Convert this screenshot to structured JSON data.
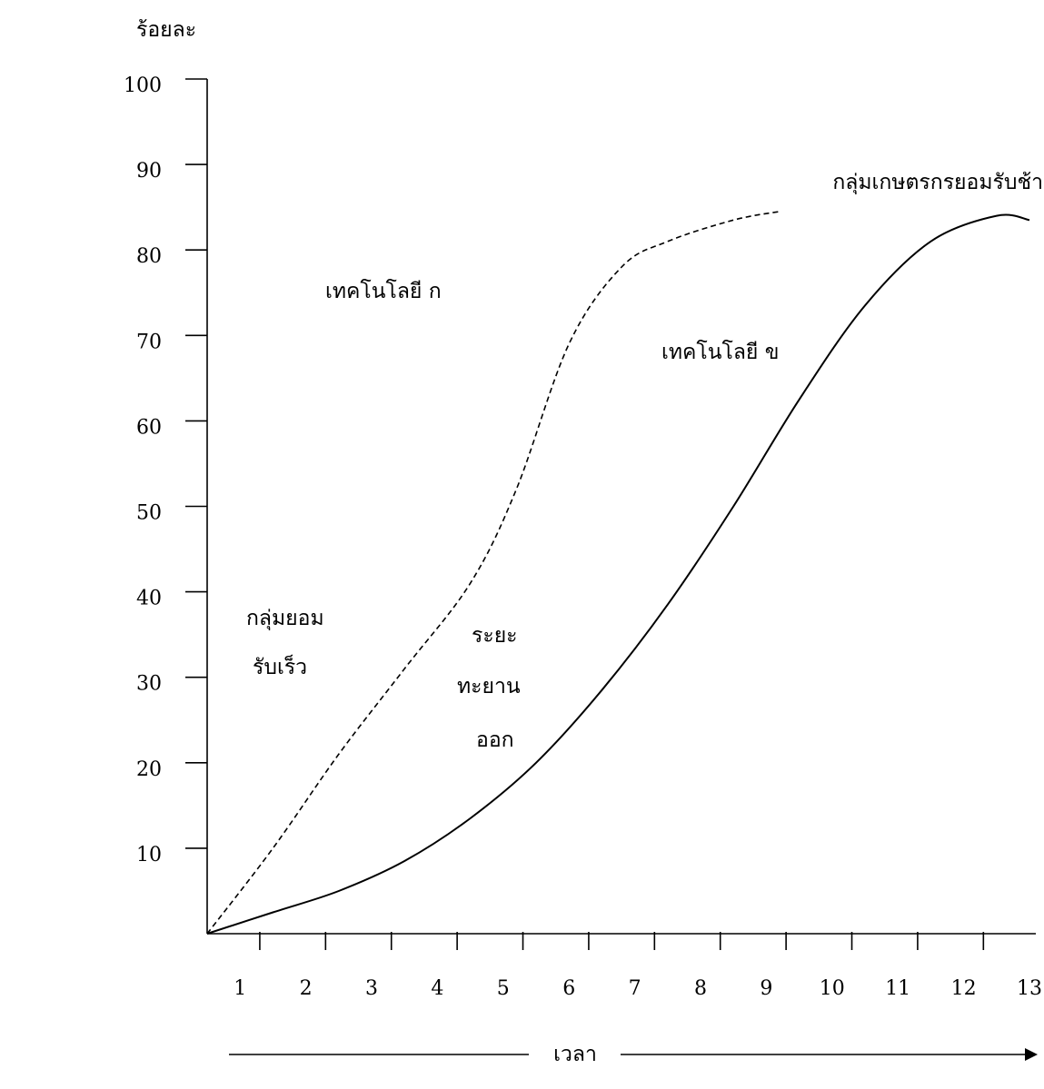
{
  "chart_data": {
    "type": "line",
    "title": "",
    "ylabel": "ร้อยละ",
    "xlabel": "เวลา",
    "ylim": [
      0,
      100
    ],
    "xlim": [
      0,
      13
    ],
    "yticks": [
      10,
      20,
      30,
      40,
      50,
      60,
      70,
      80,
      90,
      100
    ],
    "xticks": [
      1,
      2,
      3,
      4,
      5,
      6,
      7,
      8,
      9,
      10,
      11,
      12,
      13
    ],
    "grid": false,
    "series": [
      {
        "name": "เทคโนโลยี ก",
        "style": "dashed",
        "x": [
          0,
          1,
          2,
          3,
          4,
          4.7,
          5.5,
          6.3,
          7,
          8,
          8.7
        ],
        "y": [
          0,
          10,
          21,
          31,
          41,
          52,
          69,
          78,
          81,
          83.5,
          84.5
        ]
      },
      {
        "name": "เทคโนโลยี ข",
        "style": "solid",
        "x": [
          0,
          1,
          2,
          3,
          4,
          5,
          6,
          7,
          8,
          9,
          10,
          11,
          12,
          12.5
        ],
        "y": [
          0,
          2.5,
          5,
          8.5,
          13.5,
          20,
          28.5,
          38.5,
          50,
          62.5,
          73.5,
          81,
          84,
          83.5
        ]
      }
    ],
    "annotations": [
      {
        "lines": [
          "เทคโนโลยี ก"
        ]
      },
      {
        "lines": [
          "เทคโนโลยี ข"
        ]
      },
      {
        "lines": [
          "กลุ่มยอม",
          "รับเร็ว"
        ]
      },
      {
        "lines": [
          "ระยะ",
          "ทะยาน",
          "ออก"
        ]
      },
      {
        "lines": [
          "กลุ่มเกษตรกรยอมรับช้า"
        ]
      }
    ]
  }
}
